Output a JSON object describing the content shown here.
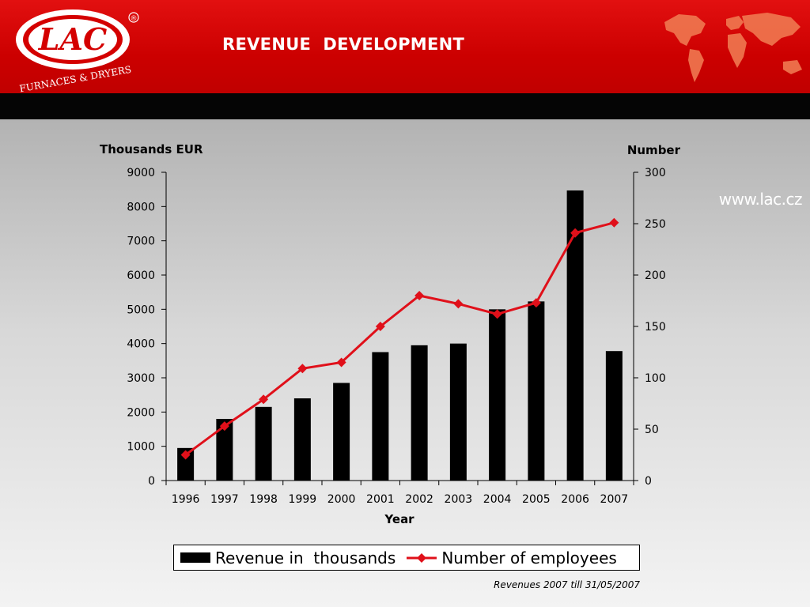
{
  "header": {
    "title": "REVENUE  DEVELOPMENT",
    "website": "www.lac.cz",
    "logo_text": "LAC",
    "logo_tagline": "FURNACES & DRYERS",
    "registered_mark": "®"
  },
  "colors": {
    "header_red": "#cc0000",
    "black_bar": "#050505",
    "bar_color": "#000000",
    "line_color": "#e0101a",
    "map_color": "#f07850"
  },
  "chart_data": {
    "type": "bar",
    "categories": [
      "1996",
      "1997",
      "1998",
      "1999",
      "2000",
      "2001",
      "2002",
      "2003",
      "2004",
      "2005",
      "2006",
      "2007"
    ],
    "series": [
      {
        "name": "Revenue in  thousands",
        "type": "bar",
        "axis": "left",
        "values": [
          950,
          1800,
          2150,
          2400,
          2850,
          3750,
          3950,
          4000,
          5000,
          5230,
          8470,
          3780
        ]
      },
      {
        "name": "Number of employees",
        "type": "line",
        "axis": "right",
        "values": [
          25,
          53,
          79,
          109,
          115,
          150,
          180,
          172,
          162,
          173,
          241,
          251
        ]
      }
    ],
    "xlabel": "Year",
    "ylabel_left": "Thousands EUR",
    "ylabel_right": "Number",
    "ylim_left": [
      0,
      9000
    ],
    "yticks_left": [
      "0",
      "1000",
      "2000",
      "3000",
      "4000",
      "5000",
      "6000",
      "7000",
      "8000",
      "9000"
    ],
    "ylim_right": [
      0,
      300
    ],
    "yticks_right": [
      "0",
      "50",
      "100",
      "150",
      "200",
      "250",
      "300"
    ],
    "grid": false,
    "legend_position": "bottom"
  },
  "footnote": "Revenues 2007 till 31/05/2007"
}
